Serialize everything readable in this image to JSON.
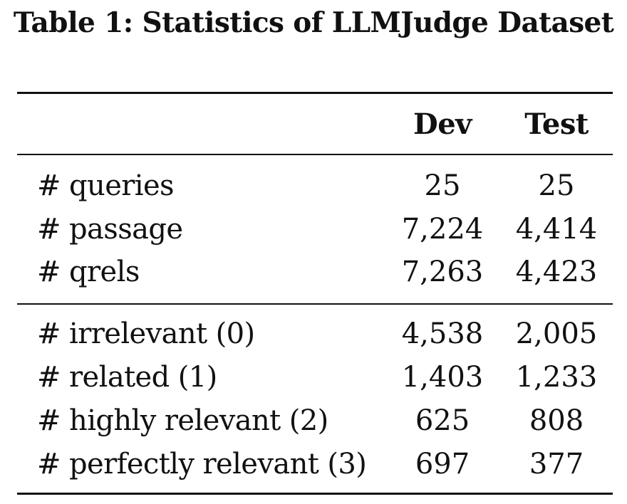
{
  "caption": "Table 1: Statistics of LLMJudge Dataset",
  "table": {
    "headers": [
      "",
      "Dev",
      "Test"
    ],
    "group1": [
      {
        "label": "# queries",
        "dev": "25",
        "test": "25"
      },
      {
        "label": "# passage",
        "dev": "7,224",
        "test": "4,414"
      },
      {
        "label": "# qrels",
        "dev": "7,263",
        "test": "4,423"
      }
    ],
    "group2": [
      {
        "label": "# irrelevant (0)",
        "dev": "4,538",
        "test": "2,005"
      },
      {
        "label": "# related (1)",
        "dev": "1,403",
        "test": "1,233"
      },
      {
        "label": "# highly relevant (2)",
        "dev": "625",
        "test": "808"
      },
      {
        "label": "# perfectly relevant (3)",
        "dev": "697",
        "test": "377"
      }
    ]
  }
}
